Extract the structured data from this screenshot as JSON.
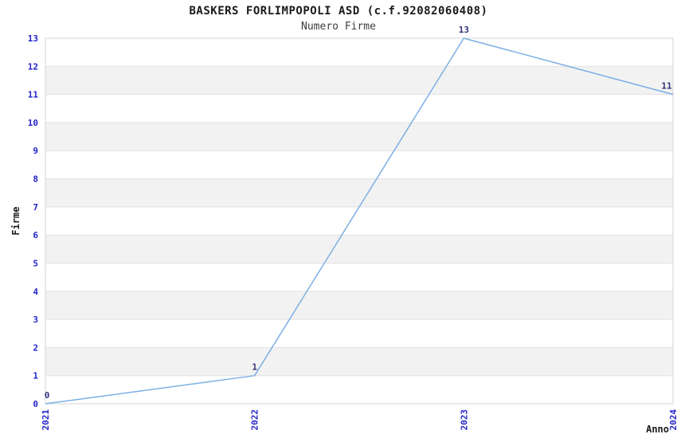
{
  "chart": {
    "title": "BASKERS FORLIMPOPOLI ASD (c.f.92082060408)",
    "subtitle": "Numero Firme"
  },
  "chart_data": {
    "type": "line",
    "title": "BASKERS FORLIMPOPOLI ASD (c.f.92082060408)",
    "subtitle": "Numero Firme",
    "x": [
      "2021",
      "2022",
      "2023",
      "2024"
    ],
    "values": [
      0,
      1,
      13,
      11
    ],
    "data_labels": [
      "0",
      "1",
      "13",
      "11"
    ],
    "xlabel": "Anno",
    "ylabel": "Firme",
    "ylim": [
      0,
      13
    ],
    "ytick_step": 1,
    "yticks": [
      0,
      1,
      2,
      3,
      4,
      5,
      6,
      7,
      8,
      9,
      10,
      11,
      12,
      13
    ],
    "grid": true,
    "alternating_bands": true,
    "legend": "none",
    "colors": {
      "line": "#7dafe4",
      "tick_label": "#2323cc",
      "data_label": "#333377",
      "grid_line": "#e2e2e2",
      "band_fill": "#f2f2f2",
      "plot_border": "#d5d5d5",
      "title_text": "#1a1a1a",
      "subtitle_text": "#3d3d3d",
      "axis_label_text": "#1a1a1a",
      "background": "#ffffff"
    }
  }
}
